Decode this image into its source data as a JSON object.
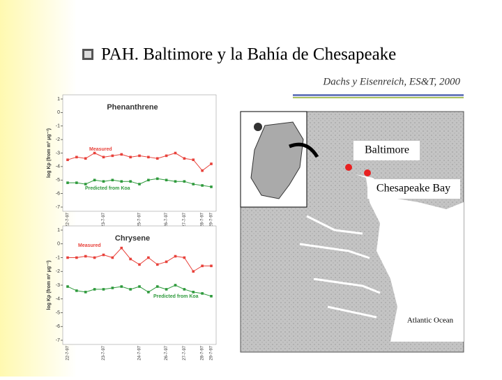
{
  "header": {
    "title": "PAH. Baltimore y  la Bahía de Chesapeake",
    "subtitle": "Dachs y Eisenreich, ES&T, 2000"
  },
  "chart_data": [
    {
      "type": "line",
      "title": "Phenanthrene",
      "ylabel": "log Kp (from m³ μg⁻¹)",
      "categories": [
        "22-7-97",
        null,
        null,
        null,
        "23-7-97",
        null,
        null,
        null,
        "25-7-97",
        null,
        null,
        "26-7-97",
        null,
        "27-7-97",
        null,
        "28-7-97",
        "29-7-97"
      ],
      "series": [
        {
          "name": "Measured",
          "color": "#e8413a",
          "values": [
            -3.5,
            -3.3,
            -3.4,
            -3.0,
            -3.3,
            -3.2,
            -3.1,
            -3.3,
            -3.2,
            -3.3,
            -3.4,
            -3.2,
            -3.0,
            -3.4,
            -3.5,
            -4.3,
            -3.8
          ]
        },
        {
          "name": "Predicted from Koa",
          "color": "#2e9a3c",
          "values": [
            -5.2,
            -5.2,
            -5.3,
            -5.0,
            -5.1,
            -5.0,
            -5.1,
            -5.1,
            -5.3,
            -5.0,
            -4.9,
            -5.0,
            -5.1,
            -5.1,
            -5.3,
            -5.4,
            -5.5
          ]
        }
      ],
      "ylim": [
        -7,
        1
      ],
      "yticks": [
        1,
        0,
        -1,
        -2,
        -3,
        -4,
        -5,
        -6,
        -7
      ]
    },
    {
      "type": "line",
      "title": "Chrysene",
      "ylabel": "log Kp (from m³ μg⁻¹)",
      "categories": [
        "22-7-97",
        null,
        null,
        null,
        "23-7-97",
        null,
        null,
        null,
        "24-7-97",
        null,
        null,
        "26-7-97",
        null,
        "27-7-97",
        null,
        "28-7-97",
        "29-7-97"
      ],
      "series": [
        {
          "name": "Measured",
          "color": "#e8413a",
          "values": [
            -1.0,
            -1.0,
            -0.9,
            -1.0,
            -0.8,
            -1.0,
            -0.3,
            -1.1,
            -1.5,
            -1.0,
            -1.5,
            -1.3,
            -0.9,
            -1.0,
            -2.0,
            -1.6,
            -1.6
          ]
        },
        {
          "name": "Predicted from Koa",
          "color": "#2e9a3c",
          "values": [
            -3.1,
            -3.4,
            -3.5,
            -3.3,
            -3.3,
            -3.2,
            -3.1,
            -3.3,
            -3.1,
            -3.5,
            -3.1,
            -3.3,
            -3.0,
            -3.3,
            -3.5,
            -3.6,
            -3.8
          ]
        }
      ],
      "ylim": [
        -7,
        1
      ],
      "yticks": [
        1,
        0,
        -1,
        -2,
        -3,
        -4,
        -5,
        -6,
        -7
      ]
    }
  ],
  "map": {
    "labels": [
      "Baltimore",
      "Chesapeake Bay",
      "Atlantic Ocean"
    ]
  }
}
